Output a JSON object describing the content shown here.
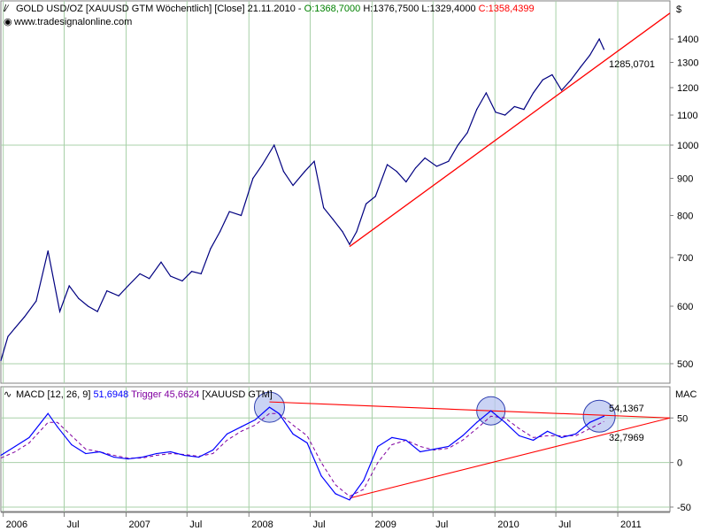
{
  "price_panel": {
    "instrument": "GOLD USD/OZ [XAUUSD GTM  Wöchentlich] [Close] 21.11.2010",
    "open": "O:1368,7000",
    "high": "H:1376,7500",
    "low": "L:1329,4000",
    "close": "C:1358,4399",
    "watermark": "www.tradesignalonline.com",
    "currency": "$",
    "trend_label": "1285,0701"
  },
  "macd_panel": {
    "name": "MACD [12, 26, 9]",
    "macd_value": "51,6948",
    "trigger": "Trigger 45,6624",
    "source": "[XAUUSD GTM]",
    "axis_title": "MAC",
    "upper_label": "54,1367",
    "lower_label": "32,7969"
  },
  "colors": {
    "price_line": "#000080",
    "macd_line": "#0000ff",
    "trigger_line": "#8000a0",
    "trendline": "#ff0000",
    "open_text": "#008000",
    "close_text": "#ff0000",
    "gridline": "#a8d0a8",
    "circle_fill": "#b8c4f0",
    "circle_stroke": "#3040b0"
  },
  "chart_data": [
    {
      "type": "line",
      "title": "GOLD USD/OZ [XAUUSD GTM  Wöchentlich] [Close] 21.11.2010",
      "ylabel": "$",
      "y_scale": "log",
      "ylim": [
        470,
        1580
      ],
      "y_ticks": [
        500,
        600,
        700,
        800,
        900,
        1000,
        1100,
        1200,
        1300,
        1400
      ],
      "x_ticks": [
        "2006",
        "Jul",
        "2007",
        "Jul",
        "2008",
        "Jul",
        "2009",
        "Jul",
        "2010",
        "Jul",
        "2011"
      ],
      "x_tick_dates": [
        "2006-01-01",
        "2006-07-01",
        "2007-01-01",
        "2007-07-01",
        "2008-01-01",
        "2008-07-01",
        "2009-01-01",
        "2009-07-01",
        "2010-01-01",
        "2010-07-01",
        "2011-01-01"
      ],
      "xlim": [
        "2005-12-25",
        "2011-06-05"
      ],
      "grid": true,
      "series": [
        {
          "x": [
            "2005-12-25",
            "2006-01-15",
            "2006-02-05",
            "2006-03-05",
            "2006-04-09",
            "2006-05-14",
            "2006-06-18",
            "2006-07-16",
            "2006-08-13",
            "2006-09-10",
            "2006-10-08",
            "2006-11-05",
            "2006-12-10",
            "2007-01-07",
            "2007-02-11",
            "2007-03-11",
            "2007-04-15",
            "2007-05-13",
            "2007-06-17",
            "2007-07-15",
            "2007-08-12",
            "2007-09-09",
            "2007-10-07",
            "2007-11-04",
            "2007-12-09",
            "2008-01-13",
            "2008-02-10",
            "2008-03-16",
            "2008-04-13",
            "2008-05-11",
            "2008-06-15",
            "2008-07-13",
            "2008-08-10",
            "2008-09-07",
            "2008-10-05",
            "2008-10-26",
            "2008-11-16",
            "2008-12-14",
            "2009-01-11",
            "2009-02-15",
            "2009-03-15",
            "2009-04-12",
            "2009-05-10",
            "2009-06-07",
            "2009-07-12",
            "2009-08-16",
            "2009-09-13",
            "2009-10-11",
            "2009-11-08",
            "2009-12-06",
            "2010-01-03",
            "2010-01-31",
            "2010-02-28",
            "2010-03-28",
            "2010-04-25",
            "2010-05-23",
            "2010-06-20",
            "2010-07-18",
            "2010-08-15",
            "2010-09-12",
            "2010-10-10",
            "2010-11-07",
            "2010-11-21"
          ],
          "values": [
            505,
            545,
            560,
            580,
            610,
            715,
            590,
            640,
            615,
            600,
            590,
            630,
            620,
            640,
            665,
            655,
            690,
            660,
            650,
            670,
            665,
            720,
            760,
            810,
            800,
            900,
            940,
            1000,
            920,
            880,
            920,
            950,
            820,
            790,
            760,
            730,
            760,
            830,
            850,
            940,
            920,
            890,
            930,
            960,
            935,
            950,
            1000,
            1040,
            1120,
            1180,
            1110,
            1100,
            1130,
            1120,
            1180,
            1230,
            1250,
            1190,
            1230,
            1280,
            1330,
            1400,
            1355
          ]
        }
      ],
      "trendline": {
        "x": [
          "2008-10-26",
          "2011-06-05"
        ],
        "y": [
          725,
          1520
        ]
      },
      "annotations": [
        "1285,0701"
      ]
    },
    {
      "type": "line",
      "title": "MACD [12, 26, 9]",
      "ylabel": "MAC",
      "ylim": [
        -55,
        85
      ],
      "y_ticks": [
        -50,
        0,
        50
      ],
      "xlim": [
        "2005-12-25",
        "2011-06-05"
      ],
      "grid": true,
      "series": [
        {
          "name": "MACD",
          "x": [
            "2005-12-25",
            "2006-02-05",
            "2006-03-19",
            "2006-05-14",
            "2006-06-11",
            "2006-07-23",
            "2006-09-03",
            "2006-10-15",
            "2006-11-26",
            "2007-01-07",
            "2007-02-18",
            "2007-04-01",
            "2007-05-13",
            "2007-06-24",
            "2007-08-05",
            "2007-09-16",
            "2007-10-28",
            "2007-12-09",
            "2008-01-20",
            "2008-03-02",
            "2008-03-30",
            "2008-05-11",
            "2008-06-22",
            "2008-08-03",
            "2008-09-14",
            "2008-10-26",
            "2008-12-07",
            "2009-01-18",
            "2009-03-01",
            "2009-04-12",
            "2009-05-24",
            "2009-07-05",
            "2009-08-16",
            "2009-09-27",
            "2009-11-08",
            "2009-12-20",
            "2010-01-31",
            "2010-03-14",
            "2010-04-25",
            "2010-06-06",
            "2010-07-18",
            "2010-08-29",
            "2010-10-10",
            "2010-11-21"
          ],
          "values": [
            8,
            18,
            28,
            55,
            40,
            20,
            10,
            12,
            6,
            4,
            6,
            10,
            12,
            8,
            6,
            14,
            32,
            40,
            48,
            62,
            55,
            32,
            22,
            -15,
            -35,
            -42,
            -20,
            18,
            28,
            25,
            12,
            15,
            18,
            30,
            45,
            58,
            45,
            30,
            25,
            35,
            28,
            32,
            45,
            52
          ]
        },
        {
          "name": "Trigger",
          "x": [
            "2005-12-25",
            "2006-02-05",
            "2006-03-19",
            "2006-05-14",
            "2006-06-11",
            "2006-07-23",
            "2006-09-03",
            "2006-10-15",
            "2006-11-26",
            "2007-01-07",
            "2007-02-18",
            "2007-04-01",
            "2007-05-13",
            "2007-06-24",
            "2007-08-05",
            "2007-09-16",
            "2007-10-28",
            "2007-12-09",
            "2008-01-20",
            "2008-03-02",
            "2008-03-30",
            "2008-05-11",
            "2008-06-22",
            "2008-08-03",
            "2008-09-14",
            "2008-10-26",
            "2008-12-07",
            "2009-01-18",
            "2009-03-01",
            "2009-04-12",
            "2009-05-24",
            "2009-07-05",
            "2009-08-16",
            "2009-09-27",
            "2009-11-08",
            "2009-12-20",
            "2010-01-31",
            "2010-03-14",
            "2010-04-25",
            "2010-06-06",
            "2010-07-18",
            "2010-08-29",
            "2010-10-10",
            "2010-11-21"
          ],
          "values": [
            5,
            12,
            22,
            45,
            45,
            30,
            15,
            12,
            8,
            5,
            5,
            8,
            10,
            9,
            7,
            10,
            25,
            35,
            42,
            55,
            55,
            42,
            30,
            0,
            -25,
            -38,
            -30,
            0,
            20,
            25,
            18,
            14,
            16,
            25,
            38,
            52,
            50,
            38,
            28,
            30,
            30,
            30,
            38,
            46
          ]
        }
      ],
      "trendlines": [
        {
          "x": [
            "2008-03-02",
            "2011-06-05"
          ],
          "y": [
            68,
            50
          ]
        },
        {
          "x": [
            "2008-10-26",
            "2011-06-05"
          ],
          "y": [
            -40,
            50
          ]
        }
      ],
      "annotations": [
        "54,1367",
        "32,7969"
      ]
    }
  ]
}
